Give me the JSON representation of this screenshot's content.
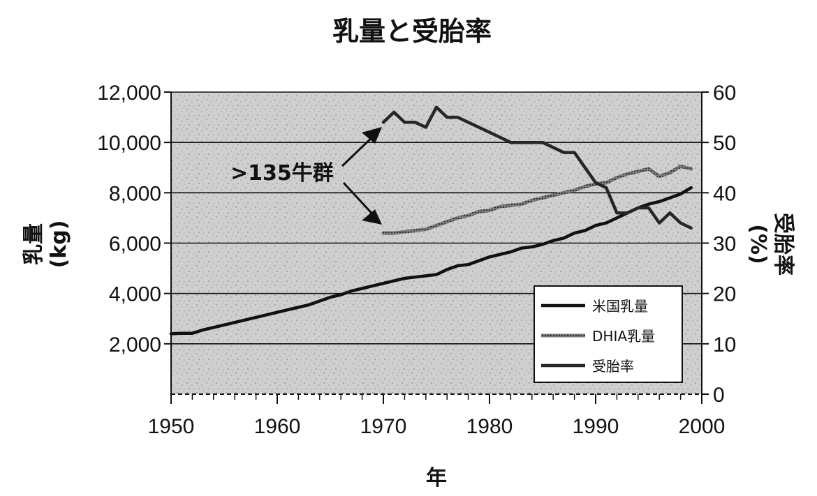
{
  "chart_data": {
    "type": "line",
    "title": "乳量と受胎率",
    "xlabel": "年",
    "ylabel_left": "乳量 (kg)",
    "ylabel_left_line1": "乳量",
    "ylabel_left_line2": "(kg)",
    "ylabel_right": "受胎率 (%)",
    "ylabel_right_line1": "受胎率",
    "ylabel_right_line2": "(%)",
    "xlim": [
      1950,
      2000
    ],
    "ylim_left": [
      0,
      12000
    ],
    "ylim_right": [
      0,
      60
    ],
    "x_ticks": [
      1950,
      1960,
      1970,
      1980,
      1990,
      2000
    ],
    "y_left_ticks": [
      {
        "value": 2000,
        "label": "2,000"
      },
      {
        "value": 4000,
        "label": "4,000"
      },
      {
        "value": 6000,
        "label": "6,000"
      },
      {
        "value": 8000,
        "label": "8,000"
      },
      {
        "value": 10000,
        "label": "10,000"
      },
      {
        "value": 12000,
        "label": "12,000"
      }
    ],
    "y_right_ticks": [
      0,
      10,
      20,
      30,
      40,
      50,
      60
    ],
    "grid": true,
    "legend_position": "bottom-right",
    "annotation": ">135牛群",
    "series": [
      {
        "name": "米国乳量",
        "axis": "left",
        "color": "#111111",
        "x": [
          1950,
          1951,
          1952,
          1953,
          1954,
          1955,
          1956,
          1957,
          1958,
          1959,
          1960,
          1961,
          1962,
          1963,
          1964,
          1965,
          1966,
          1967,
          1968,
          1969,
          1970,
          1971,
          1972,
          1973,
          1974,
          1975,
          1976,
          1977,
          1978,
          1979,
          1980,
          1981,
          1982,
          1983,
          1984,
          1985,
          1986,
          1987,
          1988,
          1989,
          1990,
          1991,
          1992,
          1993,
          1994,
          1995,
          1996,
          1997,
          1998,
          1999
        ],
        "values": [
          2400,
          2420,
          2420,
          2550,
          2650,
          2750,
          2850,
          2950,
          3050,
          3150,
          3250,
          3350,
          3450,
          3550,
          3700,
          3850,
          3950,
          4100,
          4200,
          4300,
          4400,
          4500,
          4600,
          4650,
          4700,
          4750,
          4950,
          5100,
          5150,
          5300,
          5450,
          5550,
          5650,
          5800,
          5850,
          5950,
          6100,
          6200,
          6400,
          6500,
          6700,
          6800,
          7000,
          7200,
          7400,
          7550,
          7650,
          7800,
          7950,
          8200
        ]
      },
      {
        "name": "DHIA乳量",
        "axis": "left",
        "color": "#555555",
        "x": [
          1970,
          1971,
          1972,
          1973,
          1974,
          1975,
          1976,
          1977,
          1978,
          1979,
          1980,
          1981,
          1982,
          1983,
          1984,
          1985,
          1986,
          1987,
          1988,
          1989,
          1990,
          1991,
          1992,
          1993,
          1994,
          1995,
          1996,
          1997,
          1998,
          1999
        ],
        "values": [
          6400,
          6400,
          6450,
          6500,
          6550,
          6700,
          6850,
          7000,
          7100,
          7250,
          7300,
          7450,
          7500,
          7550,
          7700,
          7800,
          7900,
          8000,
          8100,
          8250,
          8350,
          8400,
          8600,
          8750,
          8850,
          8950,
          8650,
          8800,
          9050,
          8950
        ]
      },
      {
        "name": "受胎率",
        "axis": "right",
        "color": "#222222",
        "x": [
          1970,
          1971,
          1972,
          1973,
          1974,
          1975,
          1976,
          1977,
          1978,
          1979,
          1980,
          1981,
          1982,
          1983,
          1984,
          1985,
          1986,
          1987,
          1988,
          1989,
          1990,
          1991,
          1992,
          1993,
          1994,
          1995,
          1996,
          1997,
          1998,
          1999
        ],
        "values": [
          54,
          56,
          54,
          54,
          53,
          57,
          55,
          55,
          54,
          53,
          52,
          51,
          50,
          50,
          50,
          50,
          49,
          48,
          48,
          45,
          42,
          41,
          36,
          36,
          37,
          37,
          34,
          36,
          34,
          33
        ]
      }
    ]
  }
}
